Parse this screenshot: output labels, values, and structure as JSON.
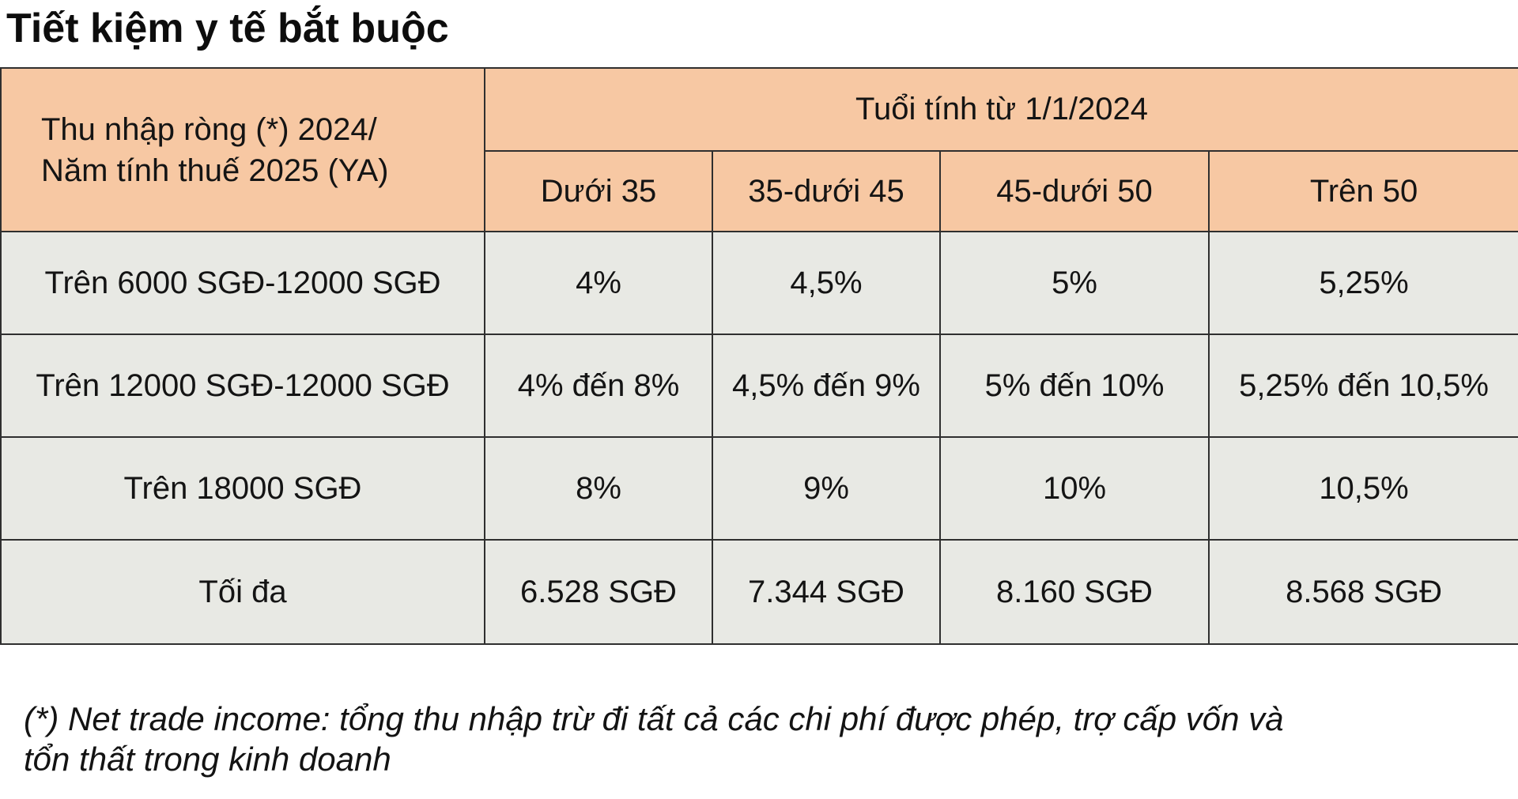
{
  "page": {
    "title": "Tiết kiệm y tế bắt buộc"
  },
  "table": {
    "corner_header": {
      "line1": "Thu nhập ròng (*) 2024/",
      "line2": "Năm tính thuế 2025 (YA)"
    },
    "age_header": "Tuổi tính từ 1/1/2024",
    "age_columns": [
      "Dưới 35",
      "35-dưới 45",
      "45-dưới 50",
      "Trên 50"
    ],
    "rows": [
      {
        "label": "Trên 6000 SGĐ-12000 SGĐ",
        "cells": [
          "4%",
          "4,5%",
          "5%",
          "5,25%"
        ]
      },
      {
        "label": "Trên 12000 SGĐ-12000 SGĐ",
        "cells": [
          "4% đến 8%",
          "4,5% đến 9%",
          "5% đến 10%",
          "5,25% đến 10,5%"
        ]
      },
      {
        "label": "Trên 18000 SGĐ",
        "cells": [
          "8%",
          "9%",
          "10%",
          "10,5%"
        ]
      },
      {
        "label": "Tối đa",
        "cells": [
          "6.528 SGĐ",
          "7.344 SGĐ",
          "8.160 SGĐ",
          "8.568 SGĐ"
        ]
      }
    ]
  },
  "footnote": {
    "line1": "(*) Net trade income: tổng thu nhập trừ đi tất cả các chi phí được phép, trợ cấp vốn và",
    "line2": "tổn thất trong kinh doanh"
  },
  "colors": {
    "header_bg": "#f7c8a3",
    "cell_bg": "#e8e9e4",
    "border": "#2f2f2f",
    "page_bg": "#ffffff",
    "text": "#141414"
  }
}
